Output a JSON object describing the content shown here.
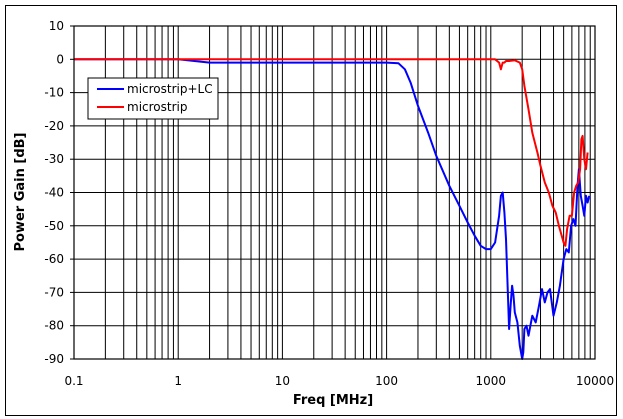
{
  "chart_data": {
    "type": "line",
    "title": "",
    "xlabel": "Freq [MHz]",
    "ylabel": "Power Gain [dB]",
    "xscale": "log",
    "xlim": [
      0.1,
      10000
    ],
    "ylim": [
      -90,
      10
    ],
    "xticks": [
      "0.1",
      "1",
      "10",
      "100",
      "1000",
      "10000"
    ],
    "yticks": [
      "10",
      "0",
      "-10",
      "-20",
      "-30",
      "-40",
      "-50",
      "-60",
      "-70",
      "-80",
      "-90"
    ],
    "grid": true,
    "legend_position": "upper left",
    "series": [
      {
        "name": "microstrip+LC",
        "color": "#0000ff",
        "x": [
          0.1,
          0.5,
          1,
          2,
          10,
          50,
          100,
          130,
          150,
          170,
          200,
          250,
          300,
          400,
          500,
          600,
          700,
          800,
          900,
          1000,
          1100,
          1200,
          1250,
          1300,
          1350,
          1400,
          1500,
          1550,
          1600,
          1650,
          1700,
          1800,
          1900,
          2000,
          2050,
          2100,
          2200,
          2300,
          2500,
          2700,
          2900,
          3100,
          3300,
          3500,
          3700,
          4000,
          4300,
          4600,
          5000,
          5300,
          5600,
          5900,
          6200,
          6500,
          6800,
          7000,
          7300,
          7600,
          7900,
          8200,
          8500,
          8800
        ],
        "values": [
          0,
          0,
          0,
          -1,
          -1,
          -1,
          -1,
          -1.2,
          -3,
          -7,
          -14,
          -22,
          -29,
          -38,
          -44,
          -49,
          -53,
          -56,
          -57,
          -57,
          -55,
          -47,
          -41,
          -40,
          -46,
          -54,
          -81,
          -74,
          -68,
          -71,
          -76,
          -79,
          -86,
          -90,
          -88,
          -81,
          -80,
          -83,
          -77,
          -79,
          -74,
          -69,
          -73,
          -70,
          -69,
          -77,
          -73,
          -68,
          -60,
          -57,
          -58,
          -50,
          -48,
          -50,
          -38,
          -33,
          -41,
          -44,
          -47,
          -41,
          -43,
          -41
        ]
      },
      {
        "name": "microstrip",
        "color": "#ff0000",
        "x": [
          0.1,
          1,
          10,
          100,
          500,
          1000,
          1100,
          1200,
          1250,
          1300,
          1350,
          1400,
          1500,
          1700,
          1900,
          2000,
          2100,
          2300,
          2500,
          2800,
          3000,
          3300,
          3600,
          3900,
          4200,
          4500,
          4700,
          5000,
          5200,
          5400,
          5700,
          6000,
          6300,
          6600,
          6900,
          7200,
          7400,
          7600,
          7900,
          8200,
          8500
        ],
        "values": [
          0,
          0,
          0,
          0,
          0,
          0,
          0,
          -1,
          -3,
          -1,
          -1,
          -0.5,
          -0.5,
          -0.3,
          -1,
          -3,
          -8,
          -15,
          -22,
          -28,
          -32,
          -37,
          -40,
          -44,
          -46,
          -50,
          -52,
          -55,
          -56,
          -51,
          -47,
          -47,
          -40,
          -38,
          -37,
          -33,
          -24,
          -23,
          -30,
          -33,
          -28
        ]
      }
    ]
  },
  "legend": {
    "items": [
      {
        "label": "microstrip+LC",
        "color": "#0000ff"
      },
      {
        "label": "microstrip",
        "color": "#ff0000"
      }
    ]
  },
  "axes": {
    "xlabel": "Freq [MHz]",
    "ylabel": "Power Gain [dB]"
  }
}
